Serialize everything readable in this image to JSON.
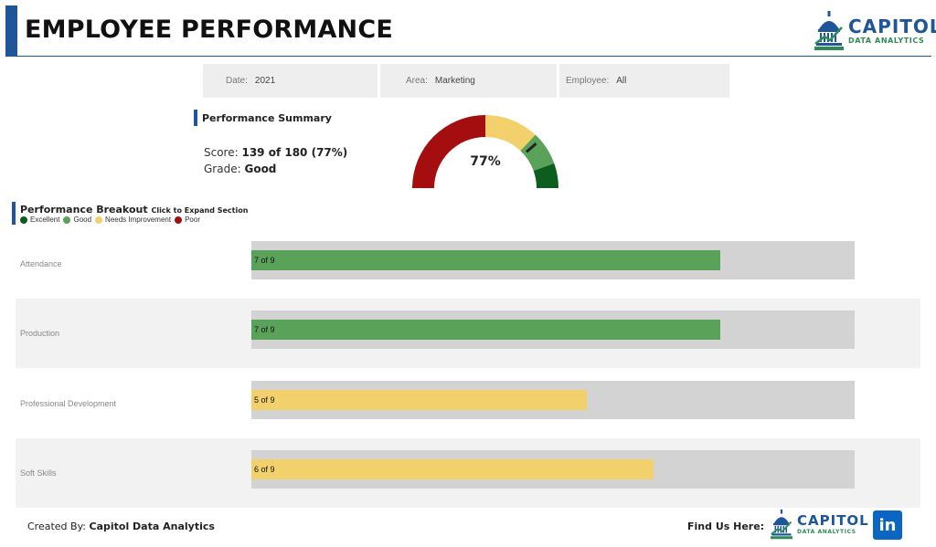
{
  "header": {
    "title": "EMPLOYEE PERFORMANCE"
  },
  "logo": {
    "main": "CAPITOL",
    "sub": "DATA ANALYTICS",
    "icon": "capitol-dome-icon"
  },
  "filters": {
    "date": {
      "label": "Date:",
      "value": "2021"
    },
    "area": {
      "label": "Area:",
      "value": "Marketing"
    },
    "employee": {
      "label": "Employee:",
      "value": "All"
    }
  },
  "summary": {
    "title": "Performance Summary",
    "score_label": "Score:",
    "score_value": "139 of 180 (77%)",
    "grade_label": "Grade:",
    "grade_value": "Good",
    "gauge_text": "77%",
    "gauge_value": 0.77
  },
  "breakout": {
    "title": "Performance Breakout",
    "hint": "Click to Expand Section",
    "legend": [
      {
        "label": "Excellent",
        "color": "#0b5e1e"
      },
      {
        "label": "Good",
        "color": "#5aa25a"
      },
      {
        "label": "Needs Improvement",
        "color": "#f2d06b"
      },
      {
        "label": "Poor",
        "color": "#a40e0e"
      }
    ],
    "rows": [
      {
        "label": "Attendance",
        "value_text": "7 of 9",
        "score": 7,
        "max": 9,
        "color": "#5aa25a"
      },
      {
        "label": "Production",
        "value_text": "7 of 9",
        "score": 7,
        "max": 9,
        "color": "#5aa25a"
      },
      {
        "label": "Professional Development",
        "value_text": "5 of 9",
        "score": 5,
        "max": 9,
        "color": "#f2d06b"
      },
      {
        "label": "Soft Skills",
        "value_text": "6 of 9",
        "score": 6,
        "max": 9,
        "color": "#f2d06b"
      }
    ]
  },
  "footer": {
    "created_label": "Created By:",
    "created_value": "Capitol Data Analytics",
    "find_label": "Find Us Here:",
    "linkedin_text": "in"
  },
  "colors": {
    "brand_blue": "#1f5599",
    "excellent": "#0b5e1e",
    "good": "#5aa25a",
    "needs": "#f2d06b",
    "poor": "#a40e0e"
  }
}
